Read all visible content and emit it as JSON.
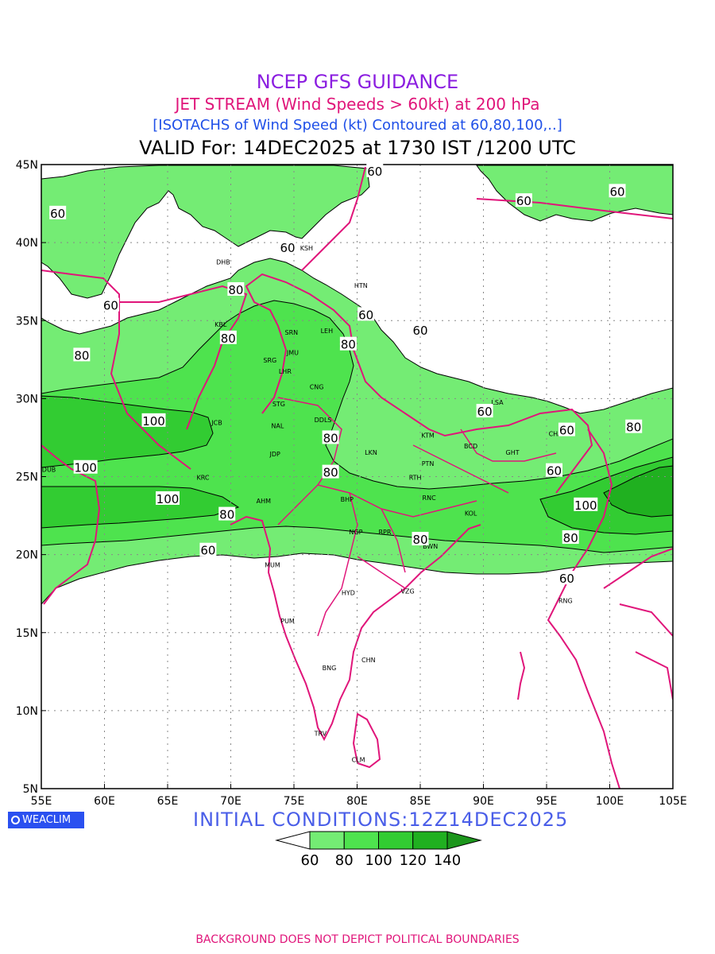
{
  "titles": {
    "line1": "NCEP GFS GUIDANCE",
    "line2": "JET STREAM (Wind Speeds > 60kt) at 200 hPa",
    "line3": "[ISOTACHS of Wind Speed (kt) Contoured at 60,80,100,..]",
    "line4": "VALID For: 14DEC2025 at 1730 IST /1200 UTC"
  },
  "axes": {
    "lon_labels": [
      "55E",
      "60E",
      "65E",
      "70E",
      "75E",
      "80E",
      "85E",
      "90E",
      "95E",
      "100E",
      "105E"
    ],
    "lat_labels": [
      "45N",
      "40N",
      "35N",
      "30N",
      "25N",
      "20N",
      "15N",
      "10N",
      "5N"
    ]
  },
  "stations": [
    {
      "code": "KSH",
      "lon": 76.0,
      "lat": 39.5
    },
    {
      "code": "DHB",
      "lon": 69.4,
      "lat": 38.6
    },
    {
      "code": "HTN",
      "lon": 80.3,
      "lat": 37.1
    },
    {
      "code": "KBL",
      "lon": 69.2,
      "lat": 34.6
    },
    {
      "code": "SRN",
      "lon": 74.8,
      "lat": 34.1
    },
    {
      "code": "LEH",
      "lon": 77.6,
      "lat": 34.2
    },
    {
      "code": "JMU",
      "lon": 74.9,
      "lat": 32.8
    },
    {
      "code": "SRG",
      "lon": 73.1,
      "lat": 32.3
    },
    {
      "code": "LHR",
      "lon": 74.3,
      "lat": 31.6
    },
    {
      "code": "CNG",
      "lon": 76.8,
      "lat": 30.6
    },
    {
      "code": "LSA",
      "lon": 91.1,
      "lat": 29.6
    },
    {
      "code": "STG",
      "lon": 73.8,
      "lat": 29.5
    },
    {
      "code": "DDLS",
      "lon": 77.3,
      "lat": 28.5
    },
    {
      "code": "JCB",
      "lon": 68.9,
      "lat": 28.3
    },
    {
      "code": "NAL",
      "lon": 73.7,
      "lat": 28.1
    },
    {
      "code": "KTM",
      "lon": 85.6,
      "lat": 27.5
    },
    {
      "code": "CHA",
      "lon": 95.7,
      "lat": 27.6
    },
    {
      "code": "BCD",
      "lon": 89.0,
      "lat": 26.8
    },
    {
      "code": "GHT",
      "lon": 92.3,
      "lat": 26.4
    },
    {
      "code": "LKN",
      "lon": 81.1,
      "lat": 26.4
    },
    {
      "code": "JDP",
      "lon": 73.5,
      "lat": 26.3
    },
    {
      "code": "PTN",
      "lon": 85.6,
      "lat": 25.7
    },
    {
      "code": "KRC",
      "lon": 67.8,
      "lat": 24.8
    },
    {
      "code": "DUB",
      "lon": 55.6,
      "lat": 25.3
    },
    {
      "code": "RTH",
      "lon": 84.6,
      "lat": 24.8
    },
    {
      "code": "BHP",
      "lon": 79.2,
      "lat": 23.4
    },
    {
      "code": "RNC",
      "lon": 85.7,
      "lat": 23.5
    },
    {
      "code": "AHM",
      "lon": 72.6,
      "lat": 23.3
    },
    {
      "code": "KOL",
      "lon": 89.0,
      "lat": 22.5
    },
    {
      "code": "NGP",
      "lon": 79.9,
      "lat": 21.3
    },
    {
      "code": "RPR",
      "lon": 82.2,
      "lat": 21.3
    },
    {
      "code": "BWN",
      "lon": 85.8,
      "lat": 20.4
    },
    {
      "code": "MUM",
      "lon": 73.3,
      "lat": 19.2
    },
    {
      "code": "HYD",
      "lon": 79.3,
      "lat": 17.4
    },
    {
      "code": "VZG",
      "lon": 84.0,
      "lat": 17.5
    },
    {
      "code": "RNG",
      "lon": 96.5,
      "lat": 16.9
    },
    {
      "code": "PUM",
      "lon": 74.5,
      "lat": 15.6
    },
    {
      "code": "CHN",
      "lon": 80.9,
      "lat": 13.1
    },
    {
      "code": "BNG",
      "lon": 77.8,
      "lat": 12.6
    },
    {
      "code": "TRV",
      "lon": 77.1,
      "lat": 8.4
    },
    {
      "code": "CLM",
      "lon": 80.1,
      "lat": 6.7
    }
  ],
  "isotach_labels": [
    {
      "text": "60",
      "lon": 56.3,
      "lat": 41.9
    },
    {
      "text": "60",
      "lon": 60.5,
      "lat": 36.0
    },
    {
      "text": "60",
      "lon": 74.5,
      "lat": 39.7
    },
    {
      "text": "60",
      "lon": 81.4,
      "lat": 44.6
    },
    {
      "text": "60",
      "lon": 93.2,
      "lat": 42.7
    },
    {
      "text": "60",
      "lon": 100.6,
      "lat": 43.3
    },
    {
      "text": "60",
      "lon": 80.7,
      "lat": 35.4
    },
    {
      "text": "60",
      "lon": 85.0,
      "lat": 34.4
    },
    {
      "text": "60",
      "lon": 90.1,
      "lat": 29.2
    },
    {
      "text": "60",
      "lon": 96.6,
      "lat": 28.0
    },
    {
      "text": "60",
      "lon": 95.6,
      "lat": 25.4
    },
    {
      "text": "60",
      "lon": 68.2,
      "lat": 20.3
    },
    {
      "text": "60",
      "lon": 96.6,
      "lat": 18.5
    },
    {
      "text": "80",
      "lon": 58.2,
      "lat": 32.8
    },
    {
      "text": "80",
      "lon": 70.4,
      "lat": 37.0
    },
    {
      "text": "80",
      "lon": 69.8,
      "lat": 33.9
    },
    {
      "text": "80",
      "lon": 79.3,
      "lat": 33.5
    },
    {
      "text": "80",
      "lon": 77.9,
      "lat": 27.5
    },
    {
      "text": "80",
      "lon": 77.9,
      "lat": 25.3
    },
    {
      "text": "80",
      "lon": 69.7,
      "lat": 22.6
    },
    {
      "text": "80",
      "lon": 85.0,
      "lat": 21.0
    },
    {
      "text": "80",
      "lon": 96.9,
      "lat": 21.1
    },
    {
      "text": "80",
      "lon": 101.9,
      "lat": 28.2
    },
    {
      "text": "100",
      "lon": 63.9,
      "lat": 28.6
    },
    {
      "text": "100",
      "lon": 58.5,
      "lat": 25.6
    },
    {
      "text": "100",
      "lon": 65.0,
      "lat": 23.6
    },
    {
      "text": "100",
      "lon": 98.1,
      "lat": 23.2
    }
  ],
  "colorbar": {
    "levels": [
      "60",
      "80",
      "100",
      "120",
      "140"
    ],
    "colors": [
      "#ffffff",
      "#74ec74",
      "#4ee34e",
      "#32cc32",
      "#20b020",
      "#1c961c"
    ]
  },
  "map_colors": {
    "contour_fill_60": "#74ec74",
    "contour_fill_80": "#4ee34e",
    "contour_fill_100": "#32cc32",
    "contour_fill_120": "#20b020",
    "boundary": "#e0157a",
    "grid": "#888888"
  },
  "footer": {
    "logo": "WEACLIM",
    "initial_conditions": "INITIAL  CONDITIONS:12Z14DEC2025",
    "disclaimer": "BACKGROUND DOES NOT DEPICT POLITICAL BOUNDARIES"
  }
}
